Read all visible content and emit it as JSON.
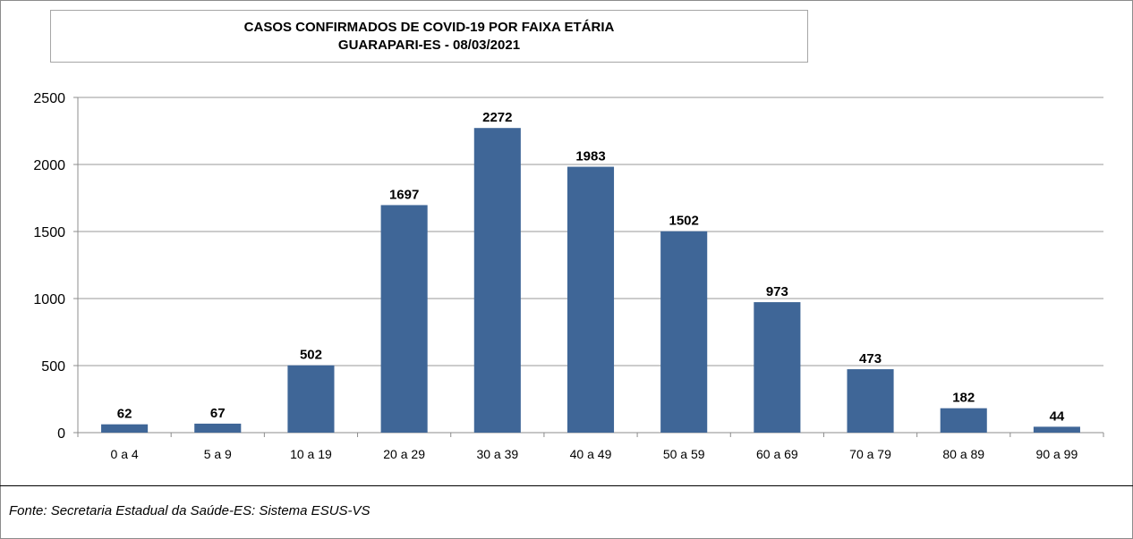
{
  "chart_data": {
    "type": "bar",
    "title": "CASOS CONFIRMADOS DE COVID-19 POR FAIXA ETÁRIA",
    "subtitle": "GUARAPARI-ES - 08/03/2021",
    "categories": [
      "0 a 4",
      "5 a 9",
      "10 a 19",
      "20 a 29",
      "30 a 39",
      "40 a 49",
      "50 a 59",
      "60 a 69",
      "70 a 79",
      "80 a 89",
      "90 a 99"
    ],
    "values": [
      62,
      67,
      502,
      1697,
      2272,
      1983,
      1502,
      973,
      473,
      182,
      44
    ],
    "ylim": [
      0,
      2500
    ],
    "yticks": [
      0,
      500,
      1000,
      1500,
      2000,
      2500
    ],
    "grid": true,
    "data_labels": true,
    "xlabel": "",
    "ylabel": "",
    "bar_color": "#3f6697"
  },
  "source": "Fonte: Secretaria Estadual da Saúde-ES: Sistema ESUS-VS"
}
